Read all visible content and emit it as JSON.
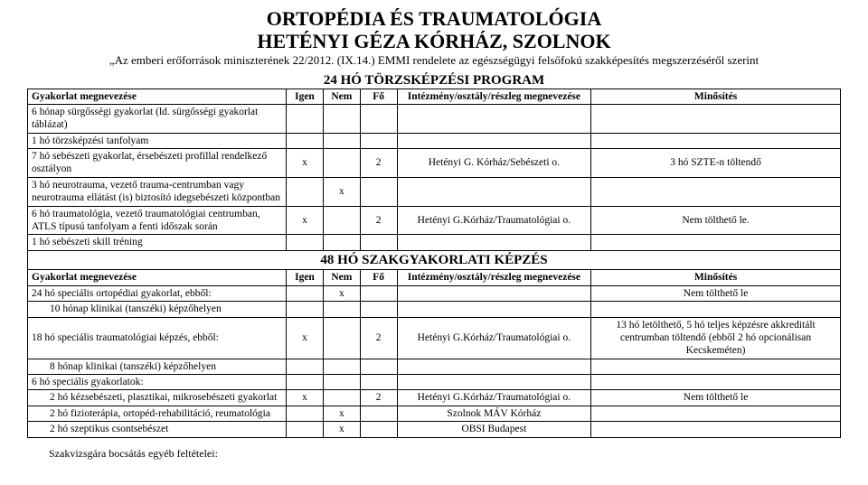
{
  "header": {
    "line1": "ORTOPÉDIA ÉS TRAUMATOLÓGIA",
    "line2": "HETÉNYI GÉZA KÓRHÁZ, SZOLNOK",
    "sub": "„Az emberi erőforrások miniszterének 22/2012. (IX.14.) EMMI rendelete az egészségügyi felsőfokú szakképesítés megszerzéséről szerint"
  },
  "section1_title": "24 HÓ TÖRZSKÉPZÉSI PROGRAM",
  "section2_title": "48 HÓ SZAKGYAKORLATI KÉPZÉS",
  "columns": {
    "gyak": "Gyakorlat megnevezése",
    "igen": "Igen",
    "nem": "Nem",
    "fo": "Fő",
    "int": "Intézmény/osztály/részleg megnevezése",
    "min": "Minősítés"
  },
  "s1": [
    {
      "name": "6 hónap sürgősségi gyakorlat (ld. sürgősségi gyakorlat táblázat)",
      "igen": "",
      "nem": "",
      "fo": "",
      "int": "",
      "min": ""
    },
    {
      "name": "1 hó törzsképzési tanfolyam",
      "igen": "",
      "nem": "",
      "fo": "",
      "int": "",
      "min": ""
    },
    {
      "name": "7 hó sebészeti gyakorlat, érsebészeti profillal rendelkező osztályon",
      "igen": "x",
      "nem": "",
      "fo": "2",
      "int": "Hetényi G. Kórház/Sebészeti o.",
      "min": "3 hó SZTE-n töltendő"
    },
    {
      "name": "3 hó neurotrauma, vezető trauma-centrumban vagy neurotrauma ellátást (is) biztosító idegsebészeti központban",
      "igen": "",
      "nem": "x",
      "fo": "",
      "int": "",
      "min": ""
    },
    {
      "name": "6 hó traumatológia, vezető traumatológiai centrumban, ATLS típusú tanfolyam a fenti időszak során",
      "igen": "x",
      "nem": "",
      "fo": "2",
      "int": "Hetényi G.Kórház/Traumatológiai o.",
      "min": "Nem tölthető le."
    },
    {
      "name": "1 hó sebészeti skill tréning",
      "igen": "",
      "nem": "",
      "fo": "",
      "int": "",
      "min": ""
    }
  ],
  "s2": [
    {
      "name": "24 hó speciális ortopédiai gyakorlat, ebből:",
      "indent": 0,
      "igen": "",
      "nem": "x",
      "fo": "",
      "int": "",
      "min": "Nem tölthető le"
    },
    {
      "name": "10 hónap klinikai (tanszéki) képzőhelyen",
      "indent": 1,
      "igen": "",
      "nem": "",
      "fo": "",
      "int": "",
      "min": ""
    },
    {
      "name": "18 hó speciális traumatológiai képzés, ebből:",
      "indent": 0,
      "igen": "x",
      "nem": "",
      "fo": "2",
      "int": "Hetényi G.Kórház/Traumatológiai o.",
      "min": "13 hó letölthető, 5 hó teljes képzésre akkreditált centrumban töltendő (ebből 2 hó opcionálisan Kecskeméten)"
    },
    {
      "name": "8 hónap klinikai (tanszéki) képzőhelyen",
      "indent": 1,
      "igen": "",
      "nem": "",
      "fo": "",
      "int": "",
      "min": ""
    },
    {
      "name": "6 hó speciális gyakorlatok:",
      "indent": 0,
      "igen": "",
      "nem": "",
      "fo": "",
      "int": "",
      "min": ""
    },
    {
      "name": "2 hó kézsebészeti, plasztikai, mikrosebészeti gyakorlat",
      "indent": 1,
      "igen": "x",
      "nem": "",
      "fo": "2",
      "int": "Hetényi G.Kórház/Traumatológiai o.",
      "min": "Nem tölthető le"
    },
    {
      "name": "2 hó fizioterápia, ortopéd-rehabilitáció, reumatológia",
      "indent": 1,
      "igen": "",
      "nem": "x",
      "fo": "",
      "int": "Szolnok MÁV Kórház",
      "min": ""
    },
    {
      "name": "2 hó szeptikus csontsebészet",
      "indent": 1,
      "igen": "",
      "nem": "x",
      "fo": "",
      "int": "OBSI Budapest",
      "min": ""
    }
  ],
  "footer": "Szakvizsgára bocsátás egyéb feltételei:"
}
